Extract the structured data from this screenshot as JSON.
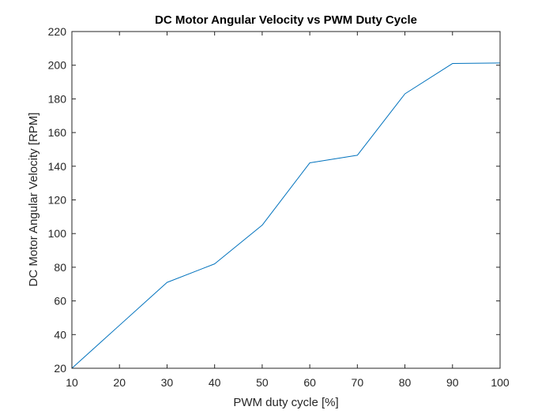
{
  "chart_data": {
    "type": "line",
    "title": "DC Motor Angular Velocity vs PWM Duty Cycle",
    "xlabel": "PWM duty cycle [%]",
    "ylabel": "DC Motor Angular Velocity [RPM]",
    "xlim": [
      10,
      100
    ],
    "ylim": [
      20,
      220
    ],
    "xticks": [
      10,
      20,
      30,
      40,
      50,
      60,
      70,
      80,
      90,
      100
    ],
    "yticks": [
      20,
      40,
      60,
      80,
      100,
      120,
      140,
      160,
      180,
      200,
      220
    ],
    "grid": false,
    "box": true,
    "series": [
      {
        "color": "#0072BD",
        "x": [
          10,
          20,
          30,
          40,
          50,
          60,
          70,
          80,
          90,
          100
        ],
        "y": [
          20,
          45.5,
          71,
          82,
          105,
          142,
          146.5,
          183,
          201,
          201.3
        ]
      }
    ]
  }
}
